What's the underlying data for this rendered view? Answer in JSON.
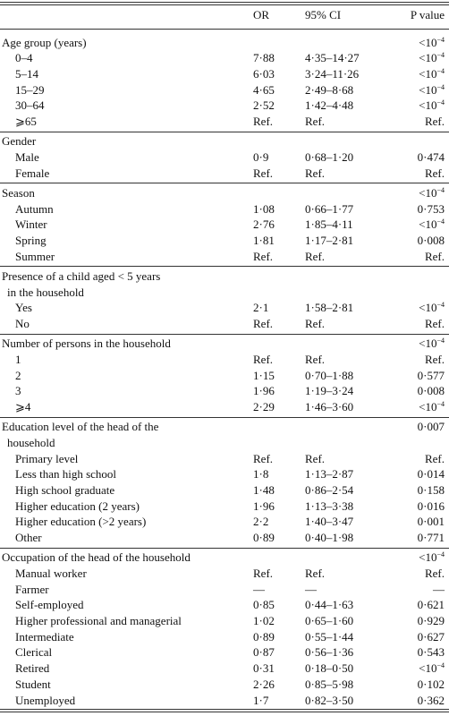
{
  "table": {
    "header": {
      "or": "OR",
      "ci": "95% CI",
      "p": "P value"
    },
    "groups": [
      {
        "label": [
          "Age group (years)"
        ],
        "p": "<10−4",
        "rows": [
          {
            "label": "0–4",
            "or": "7·88",
            "ci": "4·35–14·27",
            "p": "<10−4"
          },
          {
            "label": "5–14",
            "or": "6·03",
            "ci": "3·24–11·26",
            "p": "<10−4"
          },
          {
            "label": "15–29",
            "or": "4·65",
            "ci": "2·49–8·68",
            "p": "<10−4"
          },
          {
            "label": "30–64",
            "or": "2·52",
            "ci": "1·42–4·48",
            "p": "<10−4"
          },
          {
            "label": "⩾65",
            "or": "Ref.",
            "ci": "Ref.",
            "p": "Ref."
          }
        ]
      },
      {
        "label": [
          "Gender"
        ],
        "rows": [
          {
            "label": "Male",
            "or": "0·9",
            "ci": "0·68–1·20",
            "p": "0·474"
          },
          {
            "label": "Female",
            "or": "Ref.",
            "ci": "Ref.",
            "p": "Ref."
          }
        ]
      },
      {
        "label": [
          "Season"
        ],
        "p": "<10−4",
        "rows": [
          {
            "label": "Autumn",
            "or": "1·08",
            "ci": "0·66–1·77",
            "p": "0·753"
          },
          {
            "label": "Winter",
            "or": "2·76",
            "ci": "1·85–4·11",
            "p": "<10−4"
          },
          {
            "label": "Spring",
            "or": "1·81",
            "ci": "1·17–2·81",
            "p": "0·008"
          },
          {
            "label": "Summer",
            "or": "Ref.",
            "ci": "Ref.",
            "p": "Ref."
          }
        ]
      },
      {
        "label": [
          "Presence of a child aged < 5 years",
          "in the household"
        ],
        "rows": [
          {
            "label": "Yes",
            "or": "2·1",
            "ci": "1·58–2·81",
            "p": "<10−4"
          },
          {
            "label": "No",
            "or": "Ref.",
            "ci": "Ref.",
            "p": "Ref."
          }
        ]
      },
      {
        "label": [
          "Number of persons in the household"
        ],
        "p": "<10−4",
        "rows": [
          {
            "label": "1",
            "or": "Ref.",
            "ci": "Ref.",
            "p": "Ref."
          },
          {
            "label": "2",
            "or": "1·15",
            "ci": "0·70–1·88",
            "p": "0·577"
          },
          {
            "label": "3",
            "or": "1·96",
            "ci": "1·19–3·24",
            "p": "0·008"
          },
          {
            "label": "⩾4",
            "or": "2·29",
            "ci": "1·46–3·60",
            "p": "<10−4"
          }
        ]
      },
      {
        "label": [
          "Education level of the head of the",
          "household"
        ],
        "p": "0·007",
        "rows": [
          {
            "label": "Primary level",
            "or": "Ref.",
            "ci": "Ref.",
            "p": "Ref."
          },
          {
            "label": "Less than high school",
            "or": "1·8",
            "ci": "1·13–2·87",
            "p": "0·014"
          },
          {
            "label": "High school graduate",
            "or": "1·48",
            "ci": "0·86–2·54",
            "p": "0·158"
          },
          {
            "label": "Higher education (2 years)",
            "or": "1·96",
            "ci": "1·13–3·38",
            "p": "0·016"
          },
          {
            "label": "Higher education (>2 years)",
            "or": "2·2",
            "ci": "1·40–3·47",
            "p": "0·001"
          },
          {
            "label": "Other",
            "or": "0·89",
            "ci": "0·40–1·98",
            "p": "0·771"
          }
        ]
      },
      {
        "label": [
          "Occupation of the head of the household"
        ],
        "p": "<10−4",
        "rows": [
          {
            "label": "Manual worker",
            "or": "Ref.",
            "ci": "Ref.",
            "p": "Ref."
          },
          {
            "label": "Farmer",
            "or": "—",
            "ci": "—",
            "p": "—"
          },
          {
            "label": "Self-employed",
            "or": "0·85",
            "ci": "0·44–1·63",
            "p": "0·621"
          },
          {
            "label": "Higher professional and managerial",
            "or": "1·02",
            "ci": "0·65–1·60",
            "p": "0·929"
          },
          {
            "label": "Intermediate",
            "or": "0·89",
            "ci": "0·55–1·44",
            "p": "0·627"
          },
          {
            "label": "Clerical",
            "or": "0·87",
            "ci": "0·56–1·36",
            "p": "0·543"
          },
          {
            "label": "Retired",
            "or": "0·31",
            "ci": "0·18–0·50",
            "p": "<10−4"
          },
          {
            "label": "Student",
            "or": "2·26",
            "ci": "0·85–5·98",
            "p": "0·102"
          },
          {
            "label": "Unemployed",
            "or": "1·7",
            "ci": "0·82–3·50",
            "p": "0·362"
          }
        ]
      }
    ]
  }
}
